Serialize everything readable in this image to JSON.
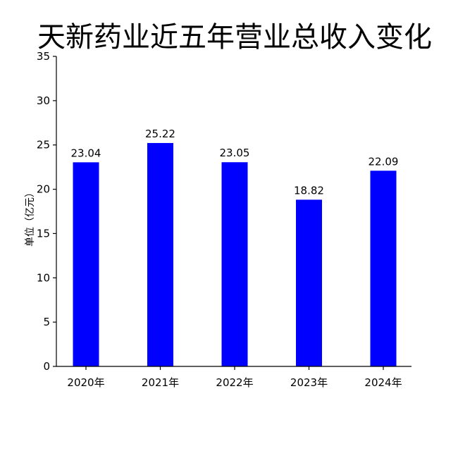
{
  "chart_data": {
    "type": "bar",
    "title": "天新药业近五年营业总收入变化",
    "xlabel": "",
    "ylabel": "单位（亿元）",
    "categories": [
      "2020年",
      "2021年",
      "2022年",
      "2023年",
      "2024年"
    ],
    "values": [
      23.04,
      25.22,
      23.05,
      18.82,
      22.09
    ],
    "data_labels": [
      "23.04",
      "25.22",
      "23.05",
      "18.82",
      "22.09"
    ],
    "ylim": [
      0,
      35
    ],
    "yticks": [
      "0",
      "5",
      "10",
      "15",
      "20",
      "25",
      "30",
      "35"
    ],
    "bar_color": "#0000ff",
    "grid": false,
    "legend": "none"
  }
}
